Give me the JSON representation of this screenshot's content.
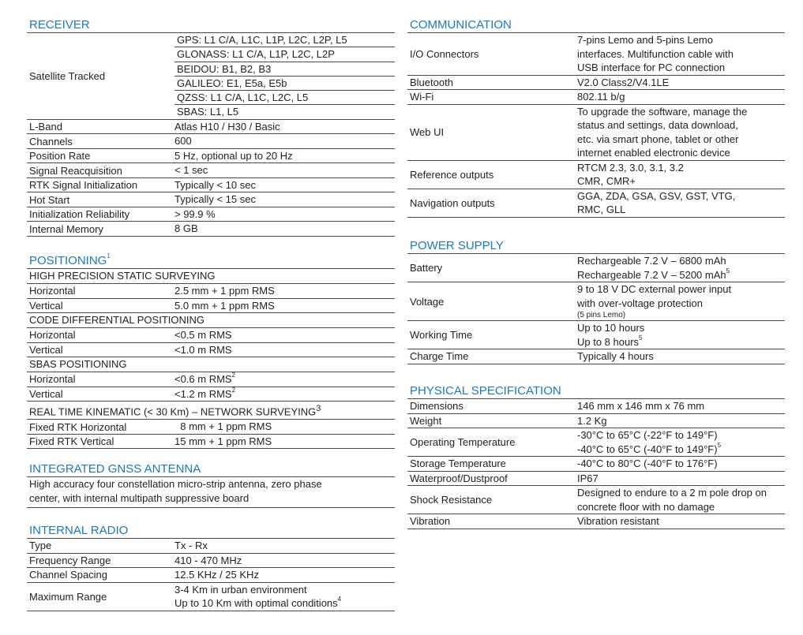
{
  "colors": {
    "heading": "#1f78bd",
    "rule": "#4a4a4a"
  },
  "left_column": {
    "sections": [
      {
        "title": "RECEIVER",
        "title_sup": "",
        "rows": [
          {
            "type": "sub",
            "label": "Satellite Tracked",
            "values": [
              {
                "text": "GPS: L1 C/A, L1C, L1P, L2C, L2P, L5"
              },
              {
                "text": "GLONASS: L1 C/A, L1P, L2C, L2P"
              },
              {
                "text": "BEIDOU: B1, B2, B3"
              },
              {
                "text": "GALILEO: E1, E5a, E5b"
              },
              {
                "text": "QZSS: L1 C/A, L1C, L2C, L5"
              },
              {
                "text": "SBAS: L1, L5"
              }
            ]
          },
          {
            "type": "kv",
            "label": "L-Band",
            "values": [
              {
                "text": "Atlas H10 / H30 / Basic"
              }
            ]
          },
          {
            "type": "kv",
            "label": "Channels",
            "values": [
              {
                "text": "600"
              }
            ]
          },
          {
            "type": "kv",
            "label": "Position Rate",
            "values": [
              {
                "text": "5 Hz, optional up to 20 Hz"
              }
            ]
          },
          {
            "type": "kv",
            "label": "Signal Reacquisition",
            "values": [
              {
                "text": "< 1 sec"
              }
            ]
          },
          {
            "type": "kv",
            "label": "RTK Signal Initialization",
            "values": [
              {
                "text": "Typically < 10 sec"
              }
            ]
          },
          {
            "type": "kv",
            "label": "Hot Start",
            "values": [
              {
                "text": "Typically < 15 sec"
              }
            ]
          },
          {
            "type": "kv",
            "label": "Initialization Reliability",
            "values": [
              {
                "text": "> 99.9 %"
              }
            ]
          },
          {
            "type": "kv",
            "label": "Internal Memory",
            "values": [
              {
                "text": "8 GB"
              }
            ]
          }
        ]
      },
      {
        "title": "POSITIONING",
        "title_sup": "1",
        "rows": [
          {
            "type": "heading",
            "label": "HIGH PRECISION STATIC SURVEYING"
          },
          {
            "type": "kv",
            "label": "Horizontal",
            "values": [
              {
                "text": "2.5 mm + 1 ppm RMS"
              }
            ]
          },
          {
            "type": "kv",
            "label": "Vertical",
            "values": [
              {
                "text": "5.0 mm + 1 ppm RMS"
              }
            ]
          },
          {
            "type": "heading",
            "label": "CODE DIFFERENTIAL POSITIONING"
          },
          {
            "type": "kv",
            "label": "Horizontal",
            "values": [
              {
                "text": "<0.5 m RMS"
              }
            ]
          },
          {
            "type": "kv",
            "label": "Vertical",
            "values": [
              {
                "text": "<1.0 m RMS"
              }
            ]
          },
          {
            "type": "heading",
            "label": "SBAS POSITIONING"
          },
          {
            "type": "kv",
            "label": "Horizontal",
            "values": [
              {
                "text": "<0.6 m RMS",
                "sup": "2"
              }
            ]
          },
          {
            "type": "kv",
            "label": "Vertical",
            "values": [
              {
                "text": "<1.2 m RMS",
                "sup": "2"
              }
            ]
          },
          {
            "type": "heading",
            "label": "REAL TIME KINEMATIC (< 30 Km) – NETWORK SURVEYING",
            "sup": "3"
          },
          {
            "type": "kv",
            "label": "Fixed RTK Horizontal",
            "values": [
              {
                "text": "  8 mm + 1 ppm RMS"
              }
            ]
          },
          {
            "type": "kv",
            "label": "Fixed RTK Vertical",
            "values": [
              {
                "text": "15 mm + 1 ppm RMS"
              }
            ]
          }
        ]
      },
      {
        "title": "INTEGRATED GNSS ANTENNA",
        "title_sup": "",
        "rows": [
          {
            "type": "text",
            "values": [
              {
                "text": "High accuracy four constellation micro-strip antenna, zero phase"
              },
              {
                "text": "center, with internal multipath suppressive board"
              }
            ]
          }
        ]
      },
      {
        "title": "INTERNAL RADIO",
        "title_sup": "",
        "rows": [
          {
            "type": "kv",
            "label": "Type",
            "values": [
              {
                "text": "Tx - Rx"
              }
            ]
          },
          {
            "type": "kv",
            "label": "Frequency Range",
            "values": [
              {
                "text": "410 - 470 MHz"
              }
            ]
          },
          {
            "type": "kv",
            "label": "Channel Spacing",
            "values": [
              {
                "text": "12.5 KHz / 25 KHz"
              }
            ]
          },
          {
            "type": "kv",
            "label": "Maximum Range",
            "values": [
              {
                "text": "3-4 Km in urban environment"
              },
              {
                "text": "Up to 10 Km with optimal conditions",
                "sup": "4"
              }
            ]
          }
        ]
      }
    ]
  },
  "right_column": {
    "sections": [
      {
        "title": "COMMUNICATION",
        "title_sup": "",
        "rows": [
          {
            "type": "kv",
            "label": "I/O Connectors",
            "values": [
              {
                "text": "7-pins Lemo and 5-pins Lemo"
              },
              {
                "text": "interfaces. Multifunction cable with"
              },
              {
                "text": "USB interface for PC connection"
              }
            ]
          },
          {
            "type": "kv",
            "label": "Bluetooth",
            "values": [
              {
                "text": "V2.0 Class2/V4.1LE"
              }
            ]
          },
          {
            "type": "kv",
            "label": "Wi-Fi",
            "values": [
              {
                "text": "802.11 b/g"
              }
            ]
          },
          {
            "type": "kv",
            "label": "Web UI",
            "values": [
              {
                "text": "To upgrade the software, manage the"
              },
              {
                "text": "status and settings, data download,"
              },
              {
                "text": "etc. via smart phone, tablet or other"
              },
              {
                "text": "internet enabled electronic device"
              }
            ]
          },
          {
            "type": "kv",
            "label": "Reference outputs",
            "values": [
              {
                "text": "RTCM 2.3, 3.0, 3.1, 3.2"
              },
              {
                "text": "CMR, CMR+"
              }
            ]
          },
          {
            "type": "kv",
            "label": "Navigation outputs",
            "values": [
              {
                "text": "GGA, ZDA, GSA, GSV, GST, VTG,"
              },
              {
                "text": "RMC, GLL"
              }
            ]
          }
        ]
      },
      {
        "title": "POWER SUPPLY",
        "title_sup": "",
        "rows": [
          {
            "type": "kv",
            "label": "Battery",
            "values": [
              {
                "text": "Rechargeable 7.2 V – 6800 mAh"
              },
              {
                "text": "Rechargeable 7.2 V – 5200 mAh",
                "sup": "5"
              }
            ]
          },
          {
            "type": "kv",
            "label": "Voltage",
            "values": [
              {
                "text": "9 to 18 V DC external power input"
              },
              {
                "text": "with over-voltage protection"
              },
              {
                "text": "(5 pins Lemo)",
                "small": true
              }
            ]
          },
          {
            "type": "kv",
            "label": "Working Time",
            "values": [
              {
                "text": "Up to 10 hours"
              },
              {
                "text": "Up to 8 hours",
                "sup": "5"
              }
            ]
          },
          {
            "type": "kv",
            "label": "Charge Time",
            "values": [
              {
                "text": "Typically 4 hours"
              }
            ]
          }
        ]
      },
      {
        "title": "PHYSICAL SPECIFICATION",
        "title_sup": "",
        "rows": [
          {
            "type": "kv",
            "label": "Dimensions",
            "values": [
              {
                "text": "146 mm x 146 mm x 76 mm"
              }
            ]
          },
          {
            "type": "kv",
            "label": "Weight",
            "values": [
              {
                "text": "1.2 Kg"
              }
            ]
          },
          {
            "type": "kv",
            "label": "Operating Temperature",
            "values": [
              {
                "text": "-30°C to 65°C (-22°F to 149°F)"
              },
              {
                "text": "-40°C to 65°C (-40°F to 149°F)",
                "sup": "5"
              }
            ]
          },
          {
            "type": "kv",
            "label": "Storage Temperature",
            "values": [
              {
                "text": "-40°C to 80°C (-40°F to 176°F)"
              }
            ]
          },
          {
            "type": "kv",
            "label": "Waterproof/Dustproof",
            "values": [
              {
                "text": "IP67"
              }
            ]
          },
          {
            "type": "kv",
            "label": "Shock Resistance",
            "values": [
              {
                "text": "Designed to endure to a 2 m pole drop on"
              },
              {
                "text": "concrete floor with no damage"
              }
            ]
          },
          {
            "type": "kv",
            "label": "Vibration",
            "values": [
              {
                "text": "Vibration resistant"
              }
            ]
          }
        ]
      }
    ]
  }
}
